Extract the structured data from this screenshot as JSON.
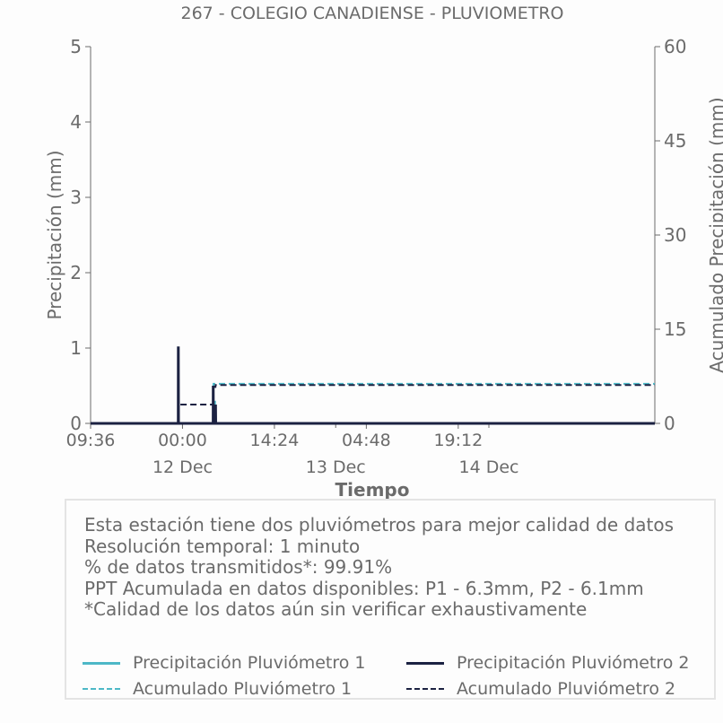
{
  "chart_data": {
    "type": "line",
    "title": "267 - COLEGIO CANADIENSE - PLUVIOMETRO",
    "xlabel": "Tiempo",
    "ylabel": "Precipitación (mm)",
    "ylabel_right": "Acumulado Precipitación (mm)",
    "ylim": [
      0,
      5
    ],
    "ylim_right": [
      0,
      60
    ],
    "yticks": [
      0,
      1,
      2,
      3,
      4,
      5
    ],
    "yticks_right": [
      0,
      15,
      30,
      45,
      60
    ],
    "xlim": [
      "2023-12-11 09:36",
      "2023-12-15 02:00"
    ],
    "xticks": [
      {
        "t": "2023-12-11 09:36",
        "label": "09:36"
      },
      {
        "t": "2023-12-12 00:00",
        "label": "00:00"
      },
      {
        "t": "2023-12-12 14:24",
        "label": "14:24"
      },
      {
        "t": "2023-12-13 04:48",
        "label": "04:48"
      },
      {
        "t": "2023-12-13 19:12",
        "label": "19:12"
      }
    ],
    "date_labels": [
      {
        "t": "2023-12-12 00:00",
        "label": "12 Dec"
      },
      {
        "t": "2023-12-13 00:00",
        "label": "13 Dec"
      },
      {
        "t": "2023-12-14 00:00",
        "label": "14 Dec"
      }
    ],
    "grid": false,
    "series": [
      {
        "name": "Precipitación Pluviómetro 1",
        "axis": "left",
        "style": "solid",
        "color": "#4db8c7",
        "points": [
          [
            "2023-12-11 09:36",
            0
          ],
          [
            "2023-12-12 05:00",
            0
          ],
          [
            "2023-12-12 05:01",
            0.3
          ],
          [
            "2023-12-12 05:02",
            0
          ],
          [
            "2023-12-15 02:00",
            0
          ]
        ]
      },
      {
        "name": "Precipitación Pluviómetro 2",
        "axis": "left",
        "style": "solid",
        "color": "#1c2242",
        "points": [
          [
            "2023-12-11 09:36",
            0
          ],
          [
            "2023-12-11 23:20",
            0
          ],
          [
            "2023-12-11 23:21",
            1.02
          ],
          [
            "2023-12-11 23:22",
            0
          ],
          [
            "2023-12-12 04:48",
            0
          ],
          [
            "2023-12-12 04:49",
            0.5
          ],
          [
            "2023-12-12 04:50",
            0
          ],
          [
            "2023-12-12 05:10",
            0
          ],
          [
            "2023-12-12 05:11",
            0.25
          ],
          [
            "2023-12-12 05:12",
            0
          ],
          [
            "2023-12-15 02:00",
            0
          ]
        ]
      },
      {
        "name": "Acumulado Pluviómetro 1",
        "axis": "right",
        "style": "dashed",
        "color": "#4db8c7",
        "points": [
          [
            "2023-12-11 09:36",
            0
          ],
          [
            "2023-12-12 04:50",
            0
          ],
          [
            "2023-12-12 04:51",
            6.3
          ],
          [
            "2023-12-15 02:00",
            6.3
          ]
        ]
      },
      {
        "name": "Acumulado Pluviómetro 2",
        "axis": "right",
        "style": "dashed",
        "color": "#1c2242",
        "points": [
          [
            "2023-12-11 09:36",
            0
          ],
          [
            "2023-12-11 23:20",
            0
          ],
          [
            "2023-12-11 23:21",
            3.0
          ],
          [
            "2023-12-12 04:48",
            3.0
          ],
          [
            "2023-12-12 04:49",
            5.8
          ],
          [
            "2023-12-12 05:10",
            5.8
          ],
          [
            "2023-12-12 05:11",
            6.1
          ],
          [
            "2023-12-15 02:00",
            6.1
          ]
        ]
      }
    ]
  },
  "info": {
    "lines": [
      "Esta estación tiene dos pluviómetros para mejor calidad de datos",
      "Resolución temporal: 1 minuto",
      "% de datos transmitidos*: 99.91%",
      "PPT Acumulada en datos disponibles: P1 - 6.3mm, P2 - 6.1mm",
      "*Calidad de los datos aún sin verificar exhaustivamente"
    ]
  },
  "legend": {
    "items": [
      {
        "label": "Precipitación Pluviómetro 1",
        "style": "solid",
        "color": "#4db8c7"
      },
      {
        "label": "Precipitación Pluviómetro 2",
        "style": "solid",
        "color": "#1c2242"
      },
      {
        "label": "Acumulado Pluviómetro 1",
        "style": "dashed",
        "color": "#4db8c7"
      },
      {
        "label": "Acumulado Pluviómetro 2",
        "style": "dashed",
        "color": "#1c2242"
      }
    ]
  }
}
